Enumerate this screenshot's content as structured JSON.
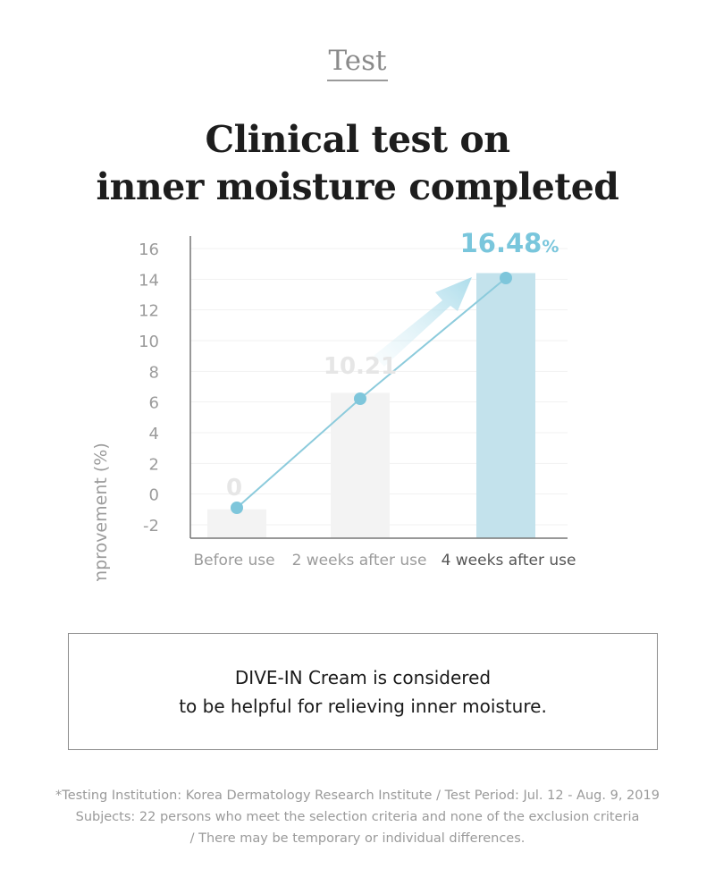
{
  "section_label": "Test",
  "headline": {
    "line1": "Clinical test on",
    "line2": "inner moisture completed"
  },
  "chart_data": {
    "type": "bar",
    "ylabel": "Improvement (%)",
    "xlabel": "",
    "ylim": [
      -2,
      16
    ],
    "yticks": [
      -2,
      0,
      2,
      4,
      6,
      8,
      10,
      12,
      14,
      16
    ],
    "grid": true,
    "categories": [
      "Before use",
      "2 weeks after use",
      "4 weeks after use"
    ],
    "values": [
      0,
      10.21,
      16.48
    ],
    "data_labels": [
      "0",
      "10.21",
      "16.48"
    ],
    "highlight_unit": "%",
    "highlight_index": 2,
    "trend_line": true,
    "colors": {
      "bar": "#f3f3f3",
      "bar_highlight": "#c3e2ec",
      "line": "#8ccbdc",
      "point": "#7ec6db",
      "highlight_label": "#79c6dc",
      "muted_label": "#e6e6e6",
      "axis": "#777777",
      "tick": "#9b9b9b",
      "grid": "#f1f1f1"
    }
  },
  "conclusion": {
    "line1": "DIVE-IN Cream is considered",
    "line2": "to be helpful for relieving inner moisture."
  },
  "footnote": {
    "line1": "*Testing Institution: Korea Dermatology Research Institute / Test Period: Jul. 12 - Aug. 9, 2019",
    "line2": "Subjects: 22 persons who meet the selection criteria and none of the exclusion criteria",
    "line3": "/ There may be temporary or individual differences."
  }
}
